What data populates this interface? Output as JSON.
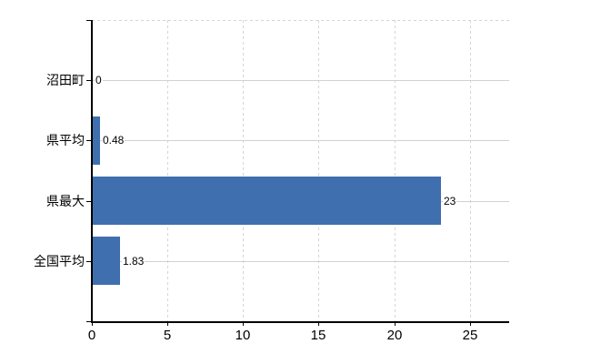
{
  "chart_data": {
    "type": "bar",
    "orientation": "horizontal",
    "title": "",
    "xlabel": "",
    "ylabel": "",
    "categories": [
      "沼田町",
      "県平均",
      "県最大",
      "全国平均"
    ],
    "values": [
      0,
      0.48,
      23,
      1.83
    ],
    "value_labels": [
      "0",
      "0.48",
      "23",
      "1.83"
    ],
    "x_ticks": [
      0,
      5,
      10,
      15,
      20,
      25
    ],
    "x_tick_labels": [
      "0",
      "5",
      "10",
      "15",
      "20",
      "25"
    ],
    "xlim": [
      0,
      27.6
    ],
    "grid": "on",
    "legend": "none",
    "colors": {
      "bar": "#3f6fae",
      "h_gridline": "#ccd5cc",
      "v_gridline": "#d9d3d9",
      "axis": "#000000",
      "text": "#000000",
      "background": "#ffffff"
    }
  }
}
